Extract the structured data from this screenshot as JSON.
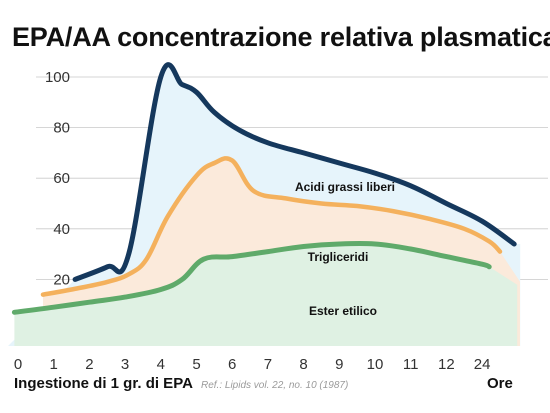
{
  "title": "EPA/AA concentrazione relativa plasmatica",
  "x_label": "Ingestione di 1 gr. di EPA",
  "x_unit": "Ore",
  "reference": "Ref.: Lipids vol. 22, no. 10 (1987)",
  "chart_data": {
    "type": "area",
    "title": "EPA/AA concentrazione relativa plasmatica",
    "xlabel": "Ingestione di 1 gr. di EPA",
    "ylabel": "",
    "ylim": [
      0,
      100
    ],
    "grid": true,
    "x_ticks": [
      "0",
      "1",
      "2",
      "3",
      "4",
      "5",
      "6",
      "7",
      "8",
      "9",
      "10",
      "11",
      "12",
      "24"
    ],
    "y_ticks": [
      "20",
      "40",
      "60",
      "80",
      "100"
    ],
    "series": [
      {
        "name": "Acidi grassi liberi",
        "color": "#15385d",
        "fill": "#e6f4fb",
        "x": [
          1.6,
          2.5,
          3.1,
          4.0,
          4.6,
          5.0,
          5.5,
          6.2,
          7.0,
          8.0,
          9.0,
          10.0,
          11.0,
          12.0,
          13.0,
          13.9
        ],
        "y": [
          20,
          25,
          30,
          100,
          97,
          94,
          86,
          79,
          74,
          70,
          66,
          62,
          57,
          50,
          43,
          34
        ]
      },
      {
        "name": "Trigliceridi",
        "color": "#f4b15d",
        "fill": "#fbeadb",
        "x": [
          0.7,
          1.5,
          2.5,
          3.1,
          3.6,
          4.2,
          5.0,
          5.5,
          6.0,
          6.6,
          7.5,
          8.5,
          9.5,
          10.5,
          11.5,
          12.5,
          13.2,
          13.5
        ],
        "y": [
          14,
          16,
          19,
          22,
          28,
          45,
          61,
          66,
          67,
          55,
          52,
          50,
          49,
          47,
          44,
          40,
          35,
          31
        ]
      },
      {
        "name": "Ester etilico",
        "color": "#5faa6a",
        "fill": "#dff1e3",
        "x": [
          -0.1,
          1.0,
          2.0,
          3.0,
          4.0,
          4.6,
          5.2,
          6.0,
          7.0,
          8.0,
          9.0,
          10.0,
          11.0,
          12.0,
          13.0,
          13.2
        ],
        "y": [
          7,
          9,
          11,
          13,
          16,
          20,
          28,
          29,
          31,
          33,
          34,
          34,
          32,
          29,
          26,
          25
        ]
      }
    ]
  }
}
